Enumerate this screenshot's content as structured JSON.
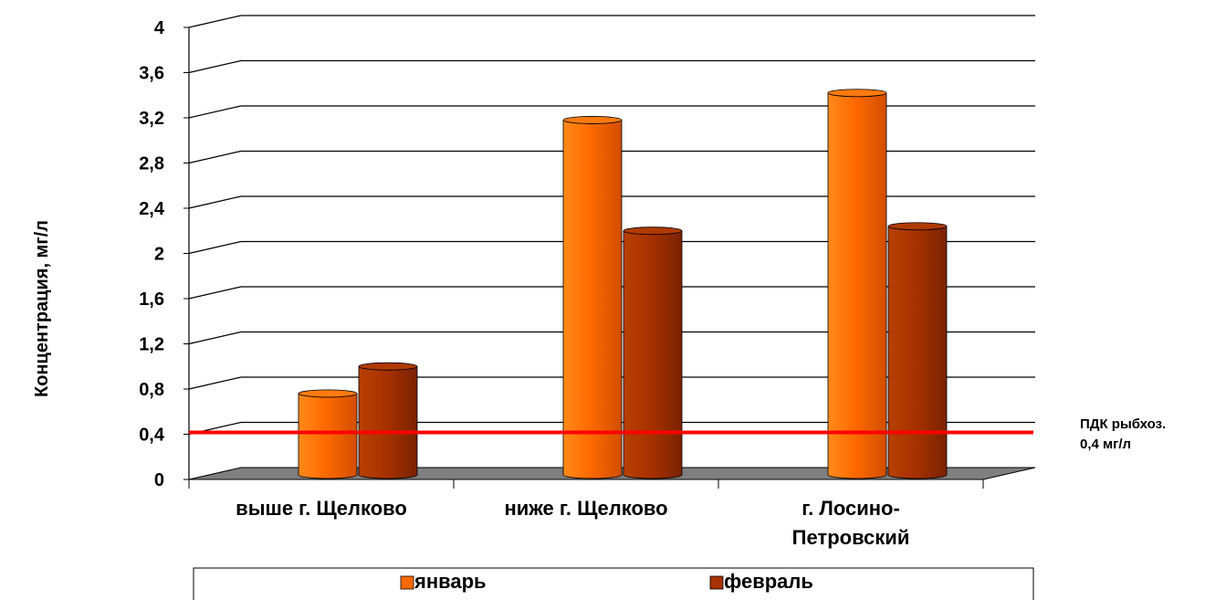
{
  "chart_data": {
    "type": "bar",
    "title": "",
    "xlabel": "",
    "ylabel": "Концентрация, мг/л",
    "ylim": [
      0,
      4
    ],
    "yticks": [
      "0",
      "0,4",
      "0,8",
      "1,2",
      "1,6",
      "2",
      "2,4",
      "2,8",
      "3,2",
      "3,6",
      "4"
    ],
    "categories": [
      [
        "выше г. Щелково"
      ],
      [
        "ниже г. Щелково"
      ],
      [
        "г. Лосино-",
        "Петровский"
      ]
    ],
    "series": [
      {
        "name": "январь",
        "color": "#ff6a00",
        "values": [
          0.72,
          3.14,
          3.38
        ]
      },
      {
        "name": "февраль",
        "color": "#a83200",
        "values": [
          0.96,
          2.16,
          2.2
        ]
      }
    ],
    "reference_line": {
      "value": 0.4,
      "color": "#ff0000",
      "label": [
        "ПДК рыбхоз.",
        "0,4 мг/л"
      ]
    },
    "grid": true,
    "legend": "bottom",
    "style": "3d-cylinder"
  }
}
